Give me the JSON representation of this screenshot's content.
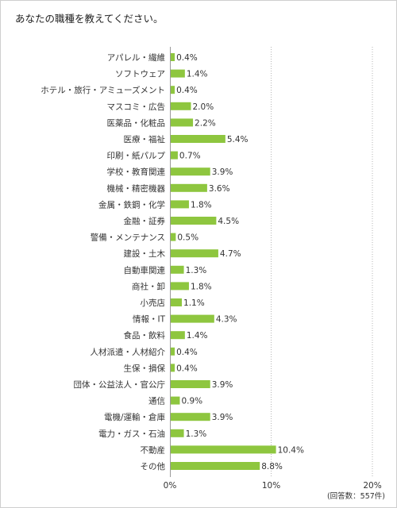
{
  "question": "あなたの職種を教えてください。",
  "respondents_note": "(回答数：557件)",
  "chart_data": {
    "type": "bar",
    "orientation": "horizontal",
    "title": "",
    "xlabel": "",
    "ylabel": "",
    "xlim": [
      0,
      20
    ],
    "ticks": [
      0,
      10,
      20
    ],
    "tick_labels": [
      "0%",
      "10%",
      "20%"
    ],
    "value_suffix": "%",
    "bar_color": "#8ec63f",
    "grid": "vertical dotted at 10% and 20%",
    "categories": [
      "アパレル・繊維",
      "ソフトウェア",
      "ホテル・旅行・アミューズメント",
      "マスコミ・広告",
      "医薬品・化粧品",
      "医療・福祉",
      "印刷・紙パルプ",
      "学校・教育関連",
      "機械・精密機器",
      "金属・鉄鋼・化学",
      "金融・証券",
      "警備・メンテナンス",
      "建設・土木",
      "自動車関連",
      "商社・卸",
      "小売店",
      "情報・IT",
      "食品・飲料",
      "人材派遣・人材紹介",
      "生保・損保",
      "団体・公益法人・官公庁",
      "通信",
      "電機/運輸・倉庫",
      "電力・ガス・石油",
      "不動産",
      "その他"
    ],
    "values": [
      0.4,
      1.4,
      0.4,
      2.0,
      2.2,
      5.4,
      0.7,
      3.9,
      3.6,
      1.8,
      4.5,
      0.5,
      4.7,
      1.3,
      1.8,
      1.1,
      4.3,
      1.4,
      0.4,
      0.4,
      3.9,
      0.9,
      3.9,
      1.3,
      10.4,
      8.8
    ],
    "value_labels": [
      "0.4%",
      "1.4%",
      "0.4%",
      "2.0%",
      "2.2%",
      "5.4%",
      "0.7%",
      "3.9%",
      "3.6%",
      "1.8%",
      "4.5%",
      "0.5%",
      "4.7%",
      "1.3%",
      "1.8%",
      "1.1%",
      "4.3%",
      "1.4%",
      "0.4%",
      "0.4%",
      "3.9%",
      "0.9%",
      "3.9%",
      "1.3%",
      "10.4%",
      "8.8%"
    ]
  }
}
